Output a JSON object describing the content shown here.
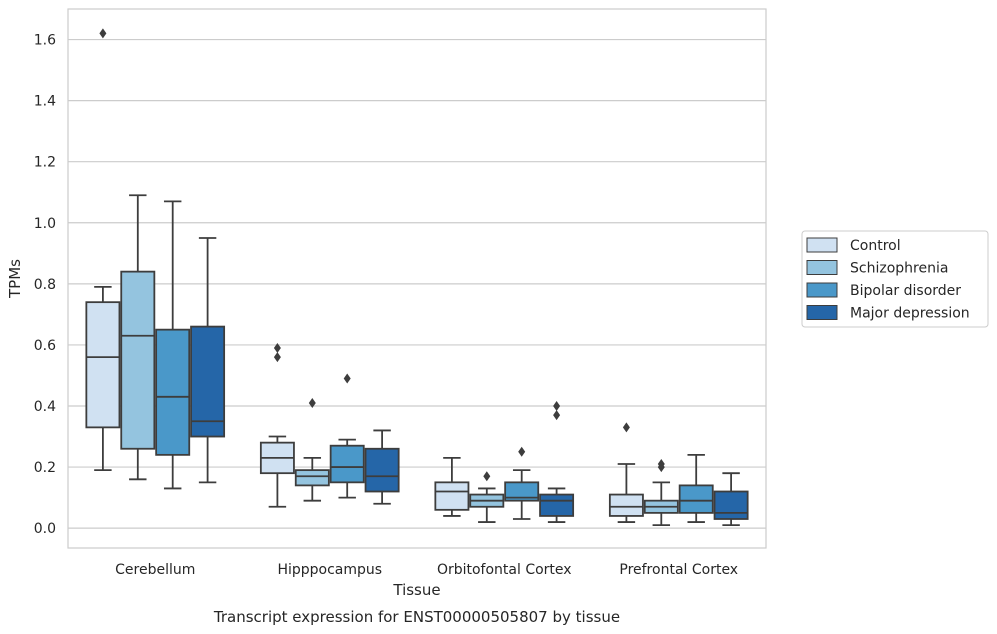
{
  "chart_data": {
    "type": "box",
    "title": "",
    "caption": "Transcript expression for ENST00000505807 by tissue",
    "xlabel": "Tissue",
    "ylabel": "TPMs",
    "ylim": [
      -0.065,
      1.7
    ],
    "yticks": [
      0.0,
      0.2,
      0.4,
      0.6,
      0.8,
      1.0,
      1.2,
      1.4,
      1.6
    ],
    "ytick_labels": [
      "0.0",
      "0.2",
      "0.4",
      "0.6",
      "0.8",
      "1.0",
      "1.2",
      "1.4",
      "1.6"
    ],
    "grid": "horizontal",
    "legend_position": "right",
    "categories": [
      "Cerebellum",
      "Hipppocampus",
      "Orbitofontal Cortex",
      "Prefrontal Cortex"
    ],
    "series": [
      {
        "name": "Control",
        "color": "#d0e1f2",
        "boxes": [
          {
            "whislo": 0.19,
            "q1": 0.33,
            "med": 0.56,
            "q3": 0.74,
            "whishi": 0.79,
            "fliers": [
              1.62
            ]
          },
          {
            "whislo": 0.07,
            "q1": 0.18,
            "med": 0.23,
            "q3": 0.28,
            "whishi": 0.3,
            "fliers": [
              0.56,
              0.59
            ]
          },
          {
            "whislo": 0.04,
            "q1": 0.06,
            "med": 0.12,
            "q3": 0.15,
            "whishi": 0.23,
            "fliers": []
          },
          {
            "whislo": 0.02,
            "q1": 0.04,
            "med": 0.07,
            "q3": 0.11,
            "whishi": 0.21,
            "fliers": [
              0.33
            ]
          }
        ]
      },
      {
        "name": "Schizophrenia",
        "color": "#94c4df",
        "boxes": [
          {
            "whislo": 0.16,
            "q1": 0.26,
            "med": 0.63,
            "q3": 0.84,
            "whishi": 1.09,
            "fliers": []
          },
          {
            "whislo": 0.09,
            "q1": 0.14,
            "med": 0.17,
            "q3": 0.19,
            "whishi": 0.23,
            "fliers": [
              0.41
            ]
          },
          {
            "whislo": 0.02,
            "q1": 0.07,
            "med": 0.09,
            "q3": 0.11,
            "whishi": 0.13,
            "fliers": [
              0.17
            ]
          },
          {
            "whislo": 0.01,
            "q1": 0.05,
            "med": 0.07,
            "q3": 0.09,
            "whishi": 0.15,
            "fliers": [
              0.2,
              0.21
            ]
          }
        ]
      },
      {
        "name": "Bipolar disorder",
        "color": "#4a98c9",
        "boxes": [
          {
            "whislo": 0.13,
            "q1": 0.24,
            "med": 0.43,
            "q3": 0.65,
            "whishi": 1.07,
            "fliers": []
          },
          {
            "whislo": 0.1,
            "q1": 0.15,
            "med": 0.2,
            "q3": 0.27,
            "whishi": 0.29,
            "fliers": [
              0.49
            ]
          },
          {
            "whislo": 0.03,
            "q1": 0.09,
            "med": 0.1,
            "q3": 0.15,
            "whishi": 0.19,
            "fliers": [
              0.25
            ]
          },
          {
            "whislo": 0.02,
            "q1": 0.05,
            "med": 0.09,
            "q3": 0.14,
            "whishi": 0.24,
            "fliers": []
          }
        ]
      },
      {
        "name": "Major depression",
        "color": "#2566a8",
        "boxes": [
          {
            "whislo": 0.15,
            "q1": 0.3,
            "med": 0.35,
            "q3": 0.66,
            "whishi": 0.95,
            "fliers": []
          },
          {
            "whislo": 0.08,
            "q1": 0.12,
            "med": 0.17,
            "q3": 0.26,
            "whishi": 0.32,
            "fliers": []
          },
          {
            "whislo": 0.02,
            "q1": 0.04,
            "med": 0.09,
            "q3": 0.11,
            "whishi": 0.13,
            "fliers": [
              0.37,
              0.4
            ]
          },
          {
            "whislo": 0.01,
            "q1": 0.03,
            "med": 0.05,
            "q3": 0.12,
            "whishi": 0.18,
            "fliers": []
          }
        ]
      }
    ]
  }
}
